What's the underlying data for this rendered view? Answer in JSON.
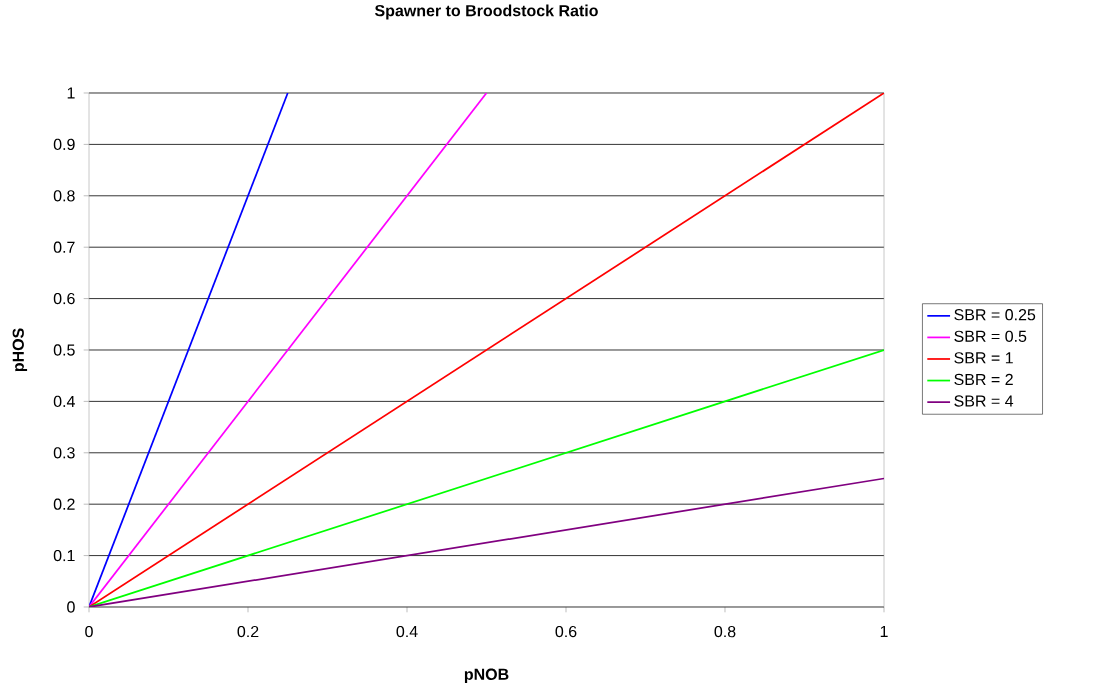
{
  "chart_data": {
    "type": "line",
    "title": "Spawner to Broodstock Ratio",
    "xlabel": "pNOB",
    "ylabel": "pHOS",
    "xlim": [
      0,
      1
    ],
    "ylim": [
      0,
      1
    ],
    "xticks": [
      0,
      0.2,
      0.4,
      0.6,
      0.8,
      1
    ],
    "yticks": [
      0,
      0.1,
      0.2,
      0.3,
      0.4,
      0.5,
      0.6,
      0.7,
      0.8,
      0.9,
      1
    ],
    "grid": "y",
    "legend": "right",
    "series": [
      {
        "name": "SBR = 0.25",
        "color": "#0000ff",
        "x": [
          0,
          0.25
        ],
        "values": [
          0,
          1
        ]
      },
      {
        "name": "SBR = 0.5",
        "color": "#ff00ff",
        "x": [
          0,
          0.5
        ],
        "values": [
          0,
          1
        ]
      },
      {
        "name": "SBR = 1",
        "color": "#ff0000",
        "x": [
          0,
          1
        ],
        "values": [
          0,
          1
        ]
      },
      {
        "name": "SBR = 2",
        "color": "#00ff00",
        "x": [
          0,
          1
        ],
        "values": [
          0,
          0.5
        ]
      },
      {
        "name": "SBR = 4",
        "color": "#800080",
        "x": [
          0,
          1
        ],
        "values": [
          0,
          0.25
        ]
      }
    ]
  }
}
